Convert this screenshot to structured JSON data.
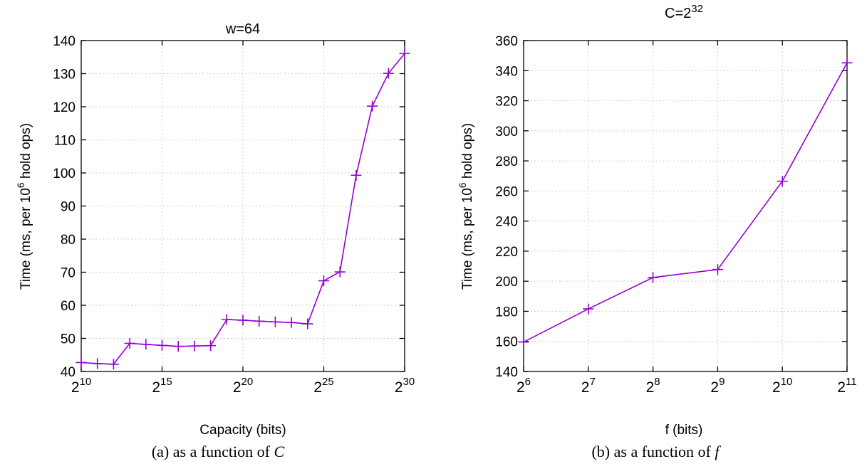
{
  "chart_data": [
    {
      "type": "line",
      "title": "w=64",
      "xlabel": "Capacity (bits)",
      "ylabel": {
        "prefix": "Time (ms, per 10",
        "sup": "6",
        "suffix": " hold ops)"
      },
      "caption": {
        "prefix": "(a) as a function of ",
        "var": "C"
      },
      "x_scale": "log2",
      "xlim": [
        10,
        30
      ],
      "x_ticks": [
        {
          "base": "2",
          "exp": "10"
        },
        {
          "base": "2",
          "exp": "15"
        },
        {
          "base": "2",
          "exp": "20"
        },
        {
          "base": "2",
          "exp": "25"
        },
        {
          "base": "2",
          "exp": "30"
        }
      ],
      "x_tick_exps": [
        10,
        15,
        20,
        25,
        30
      ],
      "ylim": [
        40,
        140
      ],
      "y_ticks": [
        40,
        50,
        60,
        70,
        80,
        90,
        100,
        110,
        120,
        130,
        140
      ],
      "grid": true,
      "marker": "plus",
      "color": "#9400d3",
      "series": [
        {
          "x_exp": [
            10,
            11,
            12,
            13,
            14,
            15,
            16,
            17,
            18,
            19,
            20,
            21,
            22,
            23,
            24,
            25,
            26,
            27,
            28,
            29,
            30
          ],
          "values": [
            42.7,
            42.4,
            42.2,
            48.5,
            48.2,
            47.9,
            47.6,
            47.7,
            47.8,
            55.7,
            55.5,
            55.2,
            55.0,
            54.8,
            54.4,
            67.4,
            70.1,
            99.3,
            120.2,
            130.1,
            136.1
          ]
        }
      ]
    },
    {
      "type": "line",
      "title": {
        "prefix": "C=2",
        "sup": "32"
      },
      "xlabel": "f (bits)",
      "ylabel": {
        "prefix": "Time (ms, per 10",
        "sup": "6",
        "suffix": " hold ops)"
      },
      "caption": {
        "prefix": "(b) as a function of ",
        "var": "f"
      },
      "x_scale": "log2",
      "xlim": [
        6,
        11
      ],
      "x_ticks": [
        {
          "base": "2",
          "exp": "6"
        },
        {
          "base": "2",
          "exp": "7"
        },
        {
          "base": "2",
          "exp": "8"
        },
        {
          "base": "2",
          "exp": "9"
        },
        {
          "base": "2",
          "exp": "10"
        },
        {
          "base": "2",
          "exp": "11"
        }
      ],
      "x_tick_exps": [
        6,
        7,
        8,
        9,
        10,
        11
      ],
      "ylim": [
        140,
        360
      ],
      "y_ticks": [
        140,
        160,
        180,
        200,
        220,
        240,
        260,
        280,
        300,
        320,
        340,
        360
      ],
      "grid": true,
      "marker": "plus",
      "color": "#9400d3",
      "series": [
        {
          "x_exp": [
            6,
            7,
            8,
            9,
            10,
            11
          ],
          "values": [
            159.6,
            181.6,
            202.5,
            207.8,
            266.5,
            345.2
          ]
        }
      ]
    }
  ]
}
